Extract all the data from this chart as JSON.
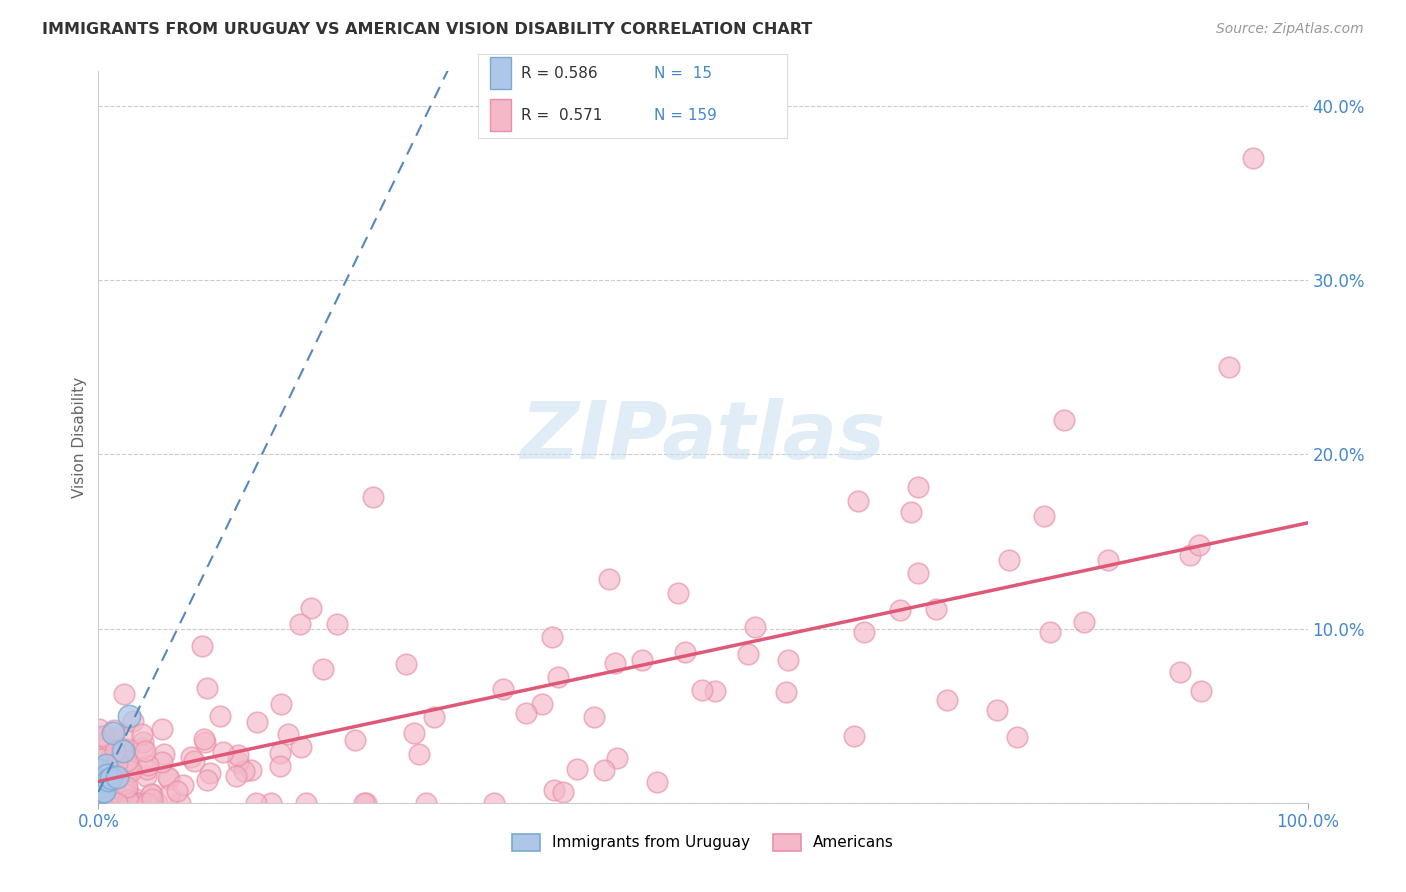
{
  "title": "IMMIGRANTS FROM URUGUAY VS AMERICAN VISION DISABILITY CORRELATION CHART",
  "source": "Source: ZipAtlas.com",
  "ylabel": "Vision Disability",
  "color_blue_face": "#aec6e8",
  "color_blue_edge": "#7aaad0",
  "color_blue_line": "#5588bb",
  "color_pink_face": "#f4b8c8",
  "color_pink_edge": "#e890a8",
  "color_pink_line": "#e05878",
  "color_grid": "#cccccc",
  "watermark_color": "#c8ddf0",
  "background": "#ffffff",
  "title_color": "#333333",
  "source_color": "#999999",
  "axis_label_color": "#4488cc",
  "ylabel_color": "#666666",
  "legend_text_color": "#333333",
  "legend_num_color": "#4488cc",
  "xlim": [
    0.0,
    1.0
  ],
  "ylim": [
    0.0,
    0.42
  ],
  "yticks": [
    0.0,
    0.1,
    0.2,
    0.3,
    0.4
  ],
  "ytick_labels": [
    "",
    "10.0%",
    "20.0%",
    "30.0%",
    "40.0%"
  ]
}
